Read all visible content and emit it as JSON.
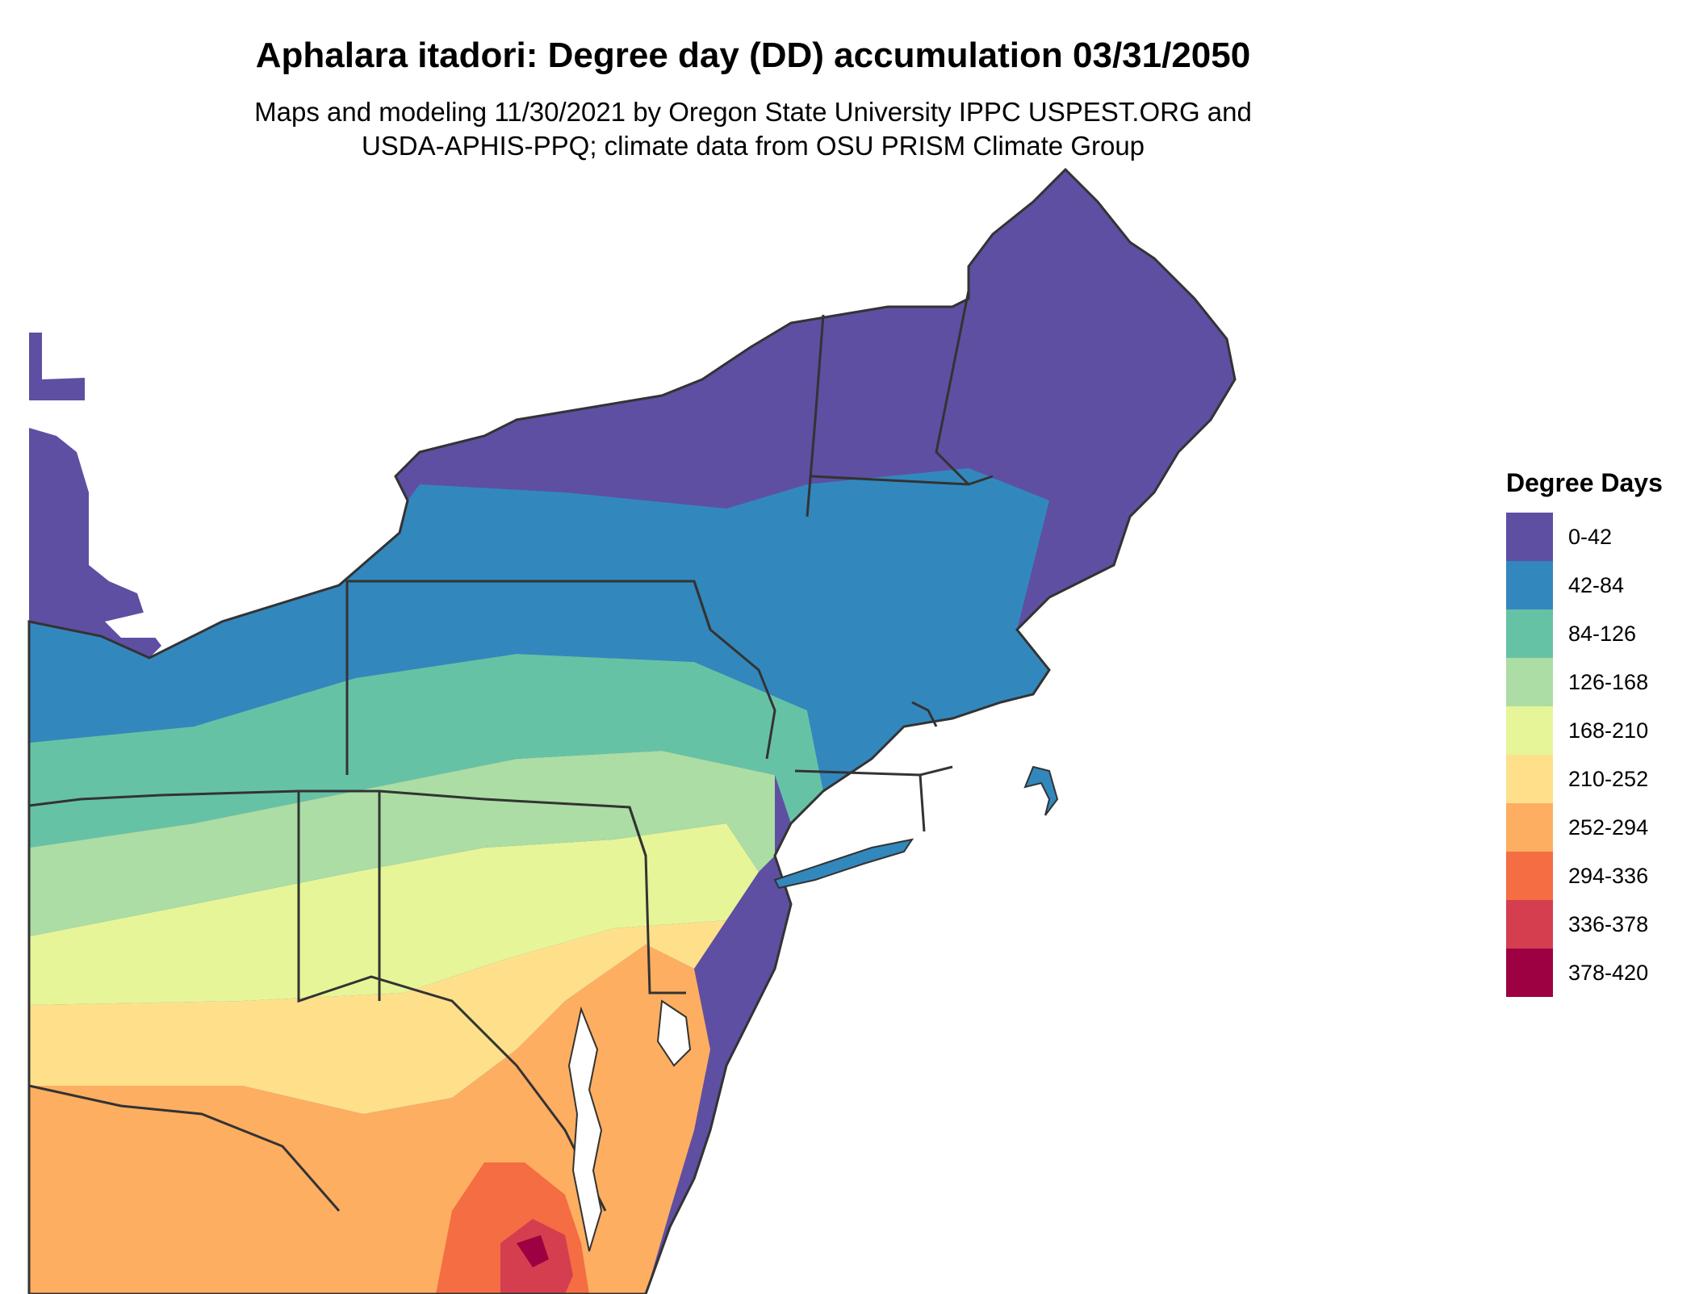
{
  "title": "Aphalara itadori: Degree day (DD) accumulation 03/31/2050",
  "subtitle": {
    "line1": "Maps and modeling 11/30/2021 by Oregon State University IPPC USPEST.ORG and",
    "line2": "USDA-APHIS-PPQ; climate data from OSU PRISM Climate Group"
  },
  "legend": {
    "title": "Degree Days",
    "items": [
      {
        "label": "0-42",
        "color": "#5E4FA2"
      },
      {
        "label": "42-84",
        "color": "#3288BD"
      },
      {
        "label": "84-126",
        "color": "#66C2A5"
      },
      {
        "label": "126-168",
        "color": "#ABDDA4"
      },
      {
        "label": "168-210",
        "color": "#E6F598"
      },
      {
        "label": "210-252",
        "color": "#FEE08B"
      },
      {
        "label": "252-294",
        "color": "#FDAE61"
      },
      {
        "label": "294-336",
        "color": "#F46D43"
      },
      {
        "label": "336-378",
        "color": "#D53E4F"
      },
      {
        "label": "378-420",
        "color": "#9E0142"
      }
    ]
  },
  "map": {
    "region": "northeastern-united-states",
    "border_color": "#333333"
  }
}
